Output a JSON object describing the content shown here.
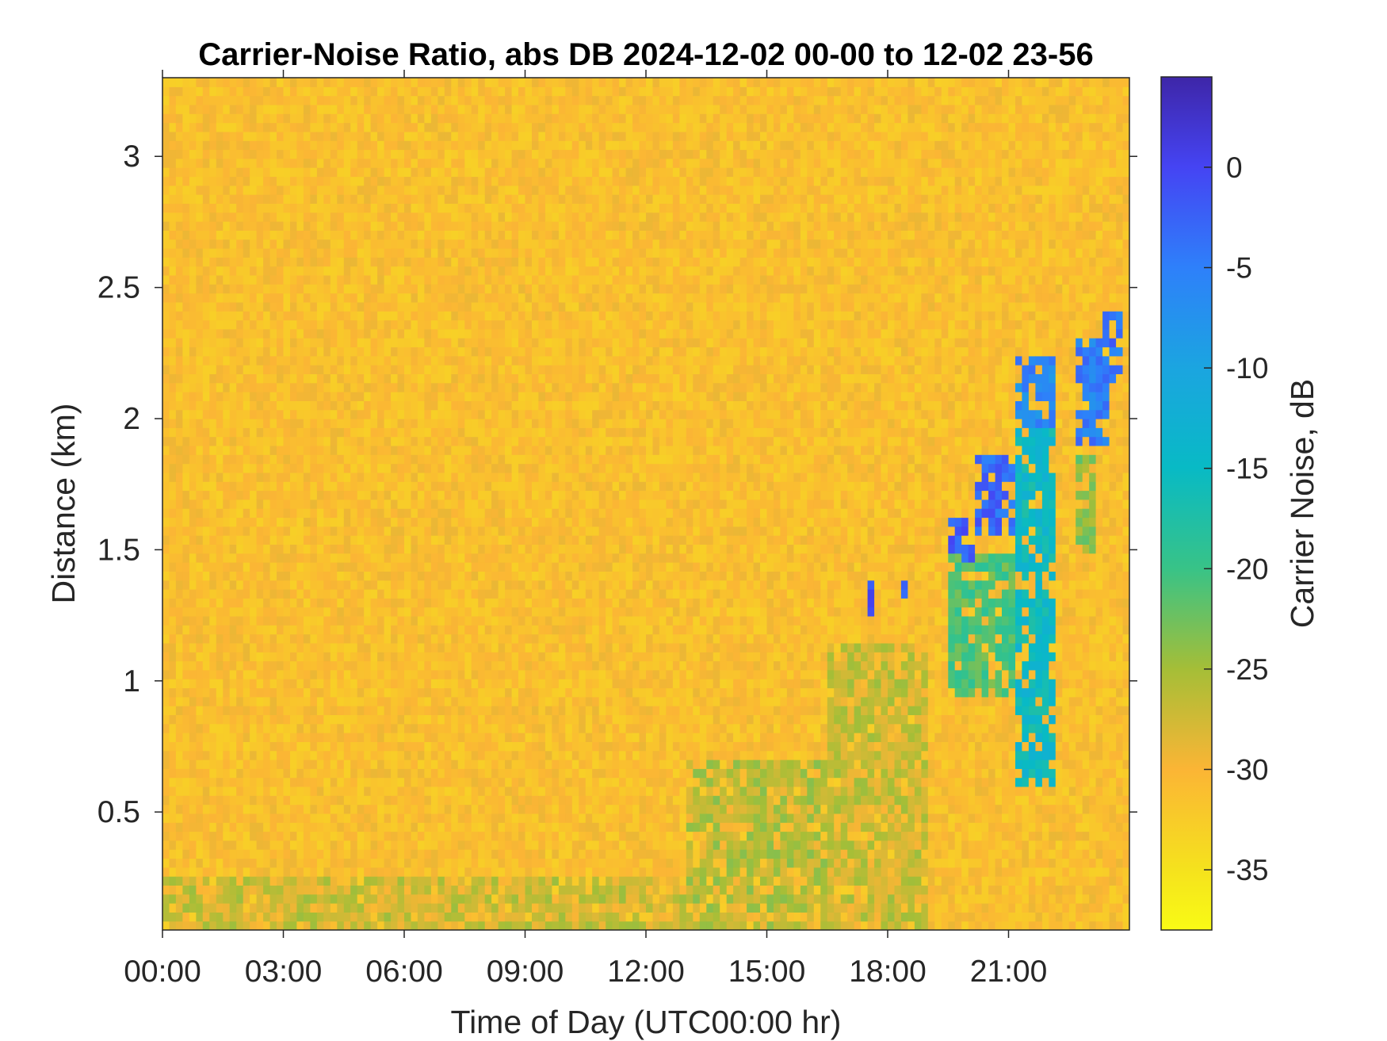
{
  "chart_data": {
    "type": "heatmap",
    "title": "Carrier-Noise Ratio, abs DB 2024-12-02 00-00 to 12-02 23-56",
    "xlabel": "Time of Day (UTC00:00 hr)",
    "ylabel": "Distance (km)",
    "x_unit": "hours",
    "xlim": [
      0,
      24
    ],
    "ylim": [
      0.05,
      3.3
    ],
    "x_ticks": [
      {
        "value": 0,
        "label": "00:00"
      },
      {
        "value": 3,
        "label": "03:00"
      },
      {
        "value": 6,
        "label": "06:00"
      },
      {
        "value": 9,
        "label": "09:00"
      },
      {
        "value": 12,
        "label": "12:00"
      },
      {
        "value": 15,
        "label": "15:00"
      },
      {
        "value": 18,
        "label": "18:00"
      },
      {
        "value": 21,
        "label": "21:00"
      }
    ],
    "y_ticks": [
      {
        "value": 0.5,
        "label": "0.5"
      },
      {
        "value": 1,
        "label": "1"
      },
      {
        "value": 1.5,
        "label": "1.5"
      },
      {
        "value": 2,
        "label": "2"
      },
      {
        "value": 2.5,
        "label": "2.5"
      },
      {
        "value": 3,
        "label": "3"
      }
    ],
    "grid": false,
    "background_level_db": -31,
    "colorbar": {
      "label": "Carrier Noise, dB",
      "range": [
        -38,
        4.5
      ],
      "ticks": [
        {
          "value": 0,
          "label": "0"
        },
        {
          "value": -5,
          "label": "-5"
        },
        {
          "value": -10,
          "label": "-10"
        },
        {
          "value": -15,
          "label": "-15"
        },
        {
          "value": -20,
          "label": "-20"
        },
        {
          "value": -25,
          "label": "-25"
        },
        {
          "value": -30,
          "label": "-30"
        },
        {
          "value": -35,
          "label": "-35"
        }
      ],
      "colors": [
        {
          "value": 4.5,
          "color": "#3e26a8"
        },
        {
          "value": 0,
          "color": "#4544f3"
        },
        {
          "value": -5,
          "color": "#2e80fa"
        },
        {
          "value": -10,
          "color": "#1ba5e0"
        },
        {
          "value": -15,
          "color": "#08bac5"
        },
        {
          "value": -20,
          "color": "#38c387"
        },
        {
          "value": -25,
          "color": "#a5be37"
        },
        {
          "value": -30,
          "color": "#fbb535"
        },
        {
          "value": -35,
          "color": "#f5e21d"
        },
        {
          "value": -38,
          "color": "#f9fb15"
        }
      ]
    },
    "features": [
      {
        "x": [
          0,
          13
        ],
        "y": [
          0.05,
          0.25
        ],
        "db": -27
      },
      {
        "x": [
          13,
          16.5
        ],
        "y": [
          0.05,
          0.7
        ],
        "db": -26
      },
      {
        "x": [
          16.5,
          19
        ],
        "y": [
          0.05,
          1.15
        ],
        "db": -27
      },
      {
        "x": [
          17.5,
          17.7
        ],
        "y": [
          1.2,
          1.4
        ],
        "db": -2
      },
      {
        "x": [
          18.3,
          18.6
        ],
        "y": [
          1.3,
          1.38
        ],
        "db": -3
      },
      {
        "x": [
          19.5,
          21.2
        ],
        "y": [
          0.95,
          1.5
        ],
        "db": -21
      },
      {
        "x": [
          19.5,
          20.2
        ],
        "y": [
          1.45,
          1.62
        ],
        "db": -2
      },
      {
        "x": [
          20.2,
          21.2
        ],
        "y": [
          1.55,
          1.85
        ],
        "db": -3
      },
      {
        "x": [
          21.2,
          22.2
        ],
        "y": [
          0.6,
          1.95
        ],
        "db": -15
      },
      {
        "x": [
          21.2,
          22.2
        ],
        "y": [
          1.95,
          2.25
        ],
        "db": -6
      },
      {
        "x": [
          22.7,
          23.5
        ],
        "y": [
          1.9,
          2.3
        ],
        "db": -5
      },
      {
        "x": [
          23.4,
          23.9
        ],
        "y": [
          2.15,
          2.4
        ],
        "db": -4
      },
      {
        "x": [
          22.7,
          23.2
        ],
        "y": [
          1.5,
          1.85
        ],
        "db": -24
      }
    ]
  }
}
